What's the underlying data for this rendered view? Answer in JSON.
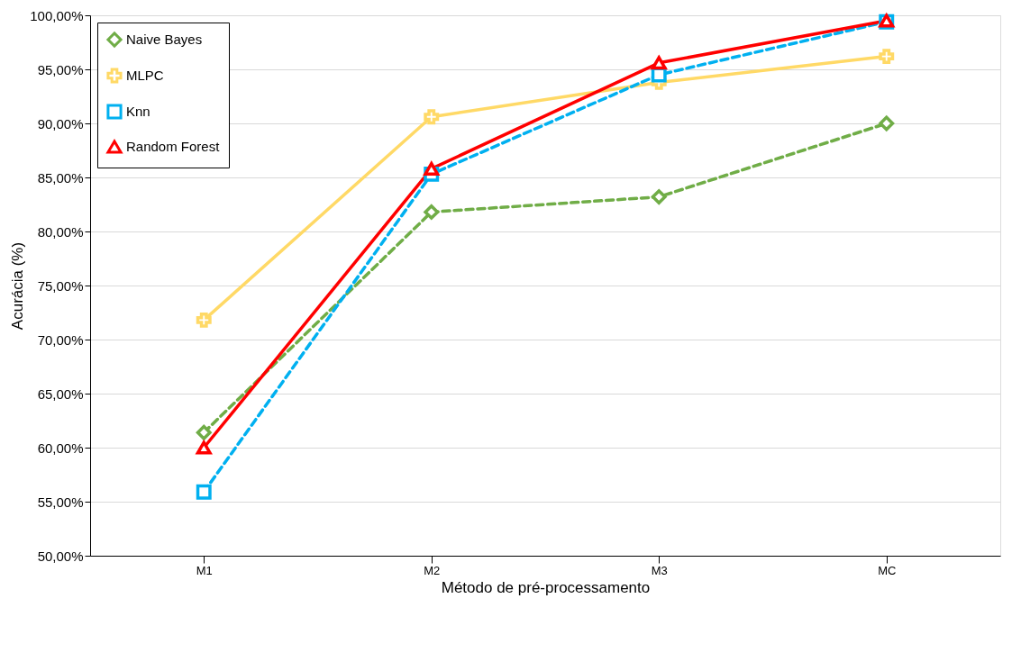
{
  "chart_data": {
    "type": "line",
    "xlabel": "Método de pré-processamento",
    "ylabel": "Acurácia (%)",
    "categories": [
      "M1",
      "M2",
      "M3",
      "MC"
    ],
    "series": [
      {
        "name": "Naive Bayes",
        "color": "#70ad47",
        "marker": "diamond",
        "line_style": "dashed",
        "values": [
          61.4,
          81.8,
          83.2,
          90.0
        ]
      },
      {
        "name": "MLPC",
        "color": "#ffd966",
        "marker": "cross",
        "line_style": "solid",
        "values": [
          71.8,
          90.6,
          93.8,
          96.2
        ]
      },
      {
        "name": "Knn",
        "color": "#00b0f0",
        "marker": "square",
        "line_style": "dashed",
        "values": [
          55.9,
          85.3,
          94.5,
          99.4
        ]
      },
      {
        "name": "Random Forest",
        "color": "#ff0000",
        "marker": "triangle",
        "line_style": "solid",
        "values": [
          60.0,
          85.8,
          95.6,
          99.5
        ]
      }
    ],
    "ylim": [
      50,
      100
    ],
    "yticks": [
      {
        "value": 50,
        "label": "50,00%"
      },
      {
        "value": 55,
        "label": "55,00%"
      },
      {
        "value": 60,
        "label": "60,00%"
      },
      {
        "value": 65,
        "label": "65,00%"
      },
      {
        "value": 70,
        "label": "70,00%"
      },
      {
        "value": 75,
        "label": "75,00%"
      },
      {
        "value": 80,
        "label": "80,00%"
      },
      {
        "value": 85,
        "label": "85,00%"
      },
      {
        "value": 90,
        "label": "90,00%"
      },
      {
        "value": 95,
        "label": "95,00%"
      },
      {
        "value": 100,
        "label": "100,00%"
      }
    ],
    "grid": "y",
    "legend": "top left"
  }
}
